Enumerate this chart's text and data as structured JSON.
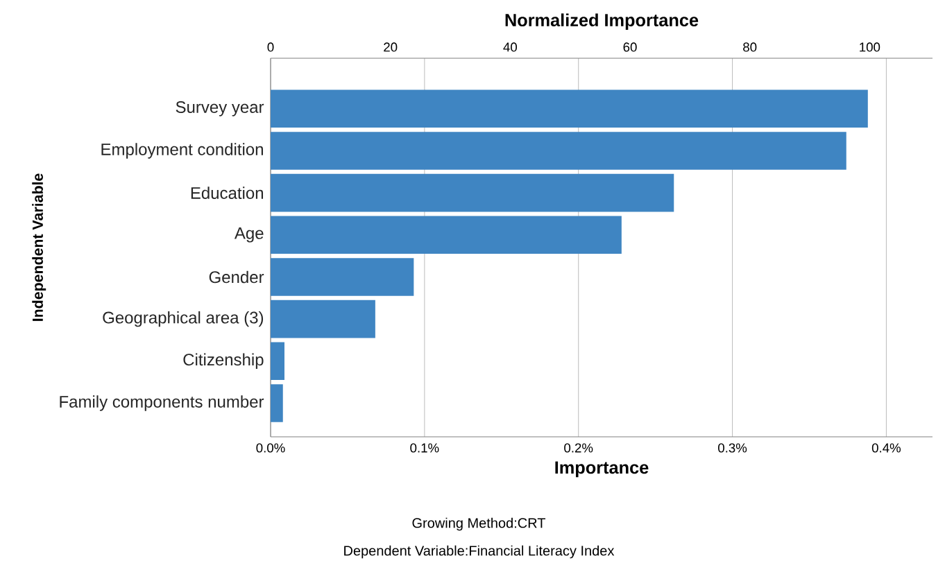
{
  "chart_data": {
    "type": "bar",
    "orientation": "horizontal",
    "xlabel": "Importance",
    "x2label": "Normalized Importance",
    "ylabel": "Independent Variable",
    "categories": [
      "Survey year",
      "Employment condition",
      "Education",
      "Age",
      "Gender",
      "Geographical area (3)",
      "Citizenship",
      "Family components number"
    ],
    "values": [
      0.388,
      0.374,
      0.262,
      0.228,
      0.093,
      0.068,
      0.009,
      0.008
    ],
    "color": "#3f85c2",
    "xlim": [
      0,
      0.43
    ],
    "xticks": [
      {
        "value": 0,
        "label": "0.0%"
      },
      {
        "value": 0.1,
        "label": "0.1%"
      },
      {
        "value": 0.2,
        "label": "0.2%"
      },
      {
        "value": 0.3,
        "label": "0.3%"
      },
      {
        "value": 0.4,
        "label": "0.4%"
      }
    ],
    "x2lim": [
      0,
      110.5
    ],
    "x2ticks": [
      0,
      20,
      40,
      60,
      80,
      100
    ],
    "grid": "x",
    "annotations": [
      "Growing Method:CRT",
      "Dependent Variable:Financial Literacy Index"
    ]
  }
}
